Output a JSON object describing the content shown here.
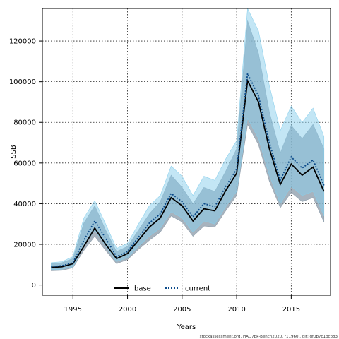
{
  "chart_data": {
    "type": "line",
    "xlabel": "Years",
    "ylabel": "SSB",
    "xlim": [
      1992.2,
      2018.6
    ],
    "ylim": [
      -5000,
      136000
    ],
    "xticks": [
      1995,
      2000,
      2005,
      2010,
      2015
    ],
    "yticks": [
      0,
      20000,
      40000,
      60000,
      80000,
      100000,
      120000
    ],
    "grid": true,
    "legend_position": "bottom-center",
    "x": [
      1993,
      1994,
      1995,
      1996,
      1997,
      1998,
      1999,
      2000,
      2001,
      2002,
      2003,
      2004,
      2005,
      2006,
      2007,
      2008,
      2009,
      2010,
      2011,
      2012,
      2013,
      2014,
      2015,
      2016,
      2017,
      2018
    ],
    "series": [
      {
        "name": "base",
        "color": "#000000",
        "line_style": "solid",
        "band_color": "#8a9aa8",
        "values": [
          8700,
          9000,
          10500,
          19000,
          28000,
          20000,
          13000,
          15500,
          22000,
          28500,
          33000,
          43000,
          39000,
          31500,
          37500,
          36500,
          46500,
          55000,
          100500,
          90000,
          67000,
          49500,
          59500,
          54000,
          58000,
          46000
        ],
        "lower": [
          7000,
          7200,
          8500,
          17000,
          24000,
          17000,
          10500,
          12500,
          17500,
          22000,
          26000,
          34000,
          31000,
          24000,
          29000,
          28500,
          36500,
          44000,
          79000,
          69000,
          51000,
          38000,
          45500,
          41000,
          43000,
          31000
        ],
        "upper": [
          10500,
          11000,
          13000,
          30500,
          39000,
          27000,
          16500,
          19000,
          27000,
          35000,
          41000,
          54000,
          48000,
          40000,
          48000,
          46000,
          56000,
          67000,
          130000,
          114000,
          85000,
          65000,
          78500,
          72000,
          79000,
          67000
        ]
      },
      {
        "name": "current",
        "color": "#0b4a8a",
        "line_style": "dotted",
        "band_color": "#87ceeb",
        "values": [
          9000,
          9500,
          11000,
          22000,
          31500,
          23000,
          14000,
          16500,
          23500,
          30500,
          35000,
          45000,
          41000,
          33500,
          40000,
          38500,
          48500,
          57000,
          104000,
          93000,
          70000,
          51500,
          63000,
          57500,
          61500,
          49000
        ],
        "lower": [
          7400,
          7800,
          9000,
          19000,
          27000,
          19000,
          11500,
          13500,
          19000,
          24000,
          28000,
          36000,
          33000,
          26000,
          31500,
          30000,
          38500,
          46000,
          82000,
          72000,
          54000,
          40000,
          48500,
          44000,
          46000,
          34000
        ],
        "upper": [
          11000,
          11500,
          14000,
          33000,
          41500,
          30000,
          18000,
          20500,
          30000,
          39000,
          44000,
          58500,
          53500,
          44000,
          53500,
          51500,
          62000,
          71000,
          137000,
          125000,
          98000,
          76000,
          88000,
          80000,
          87000,
          73000
        ]
      }
    ]
  },
  "footer": "stockassessment.org, HAD7bk-Bench2020, r11960 , git: df0b7c1bcb83"
}
